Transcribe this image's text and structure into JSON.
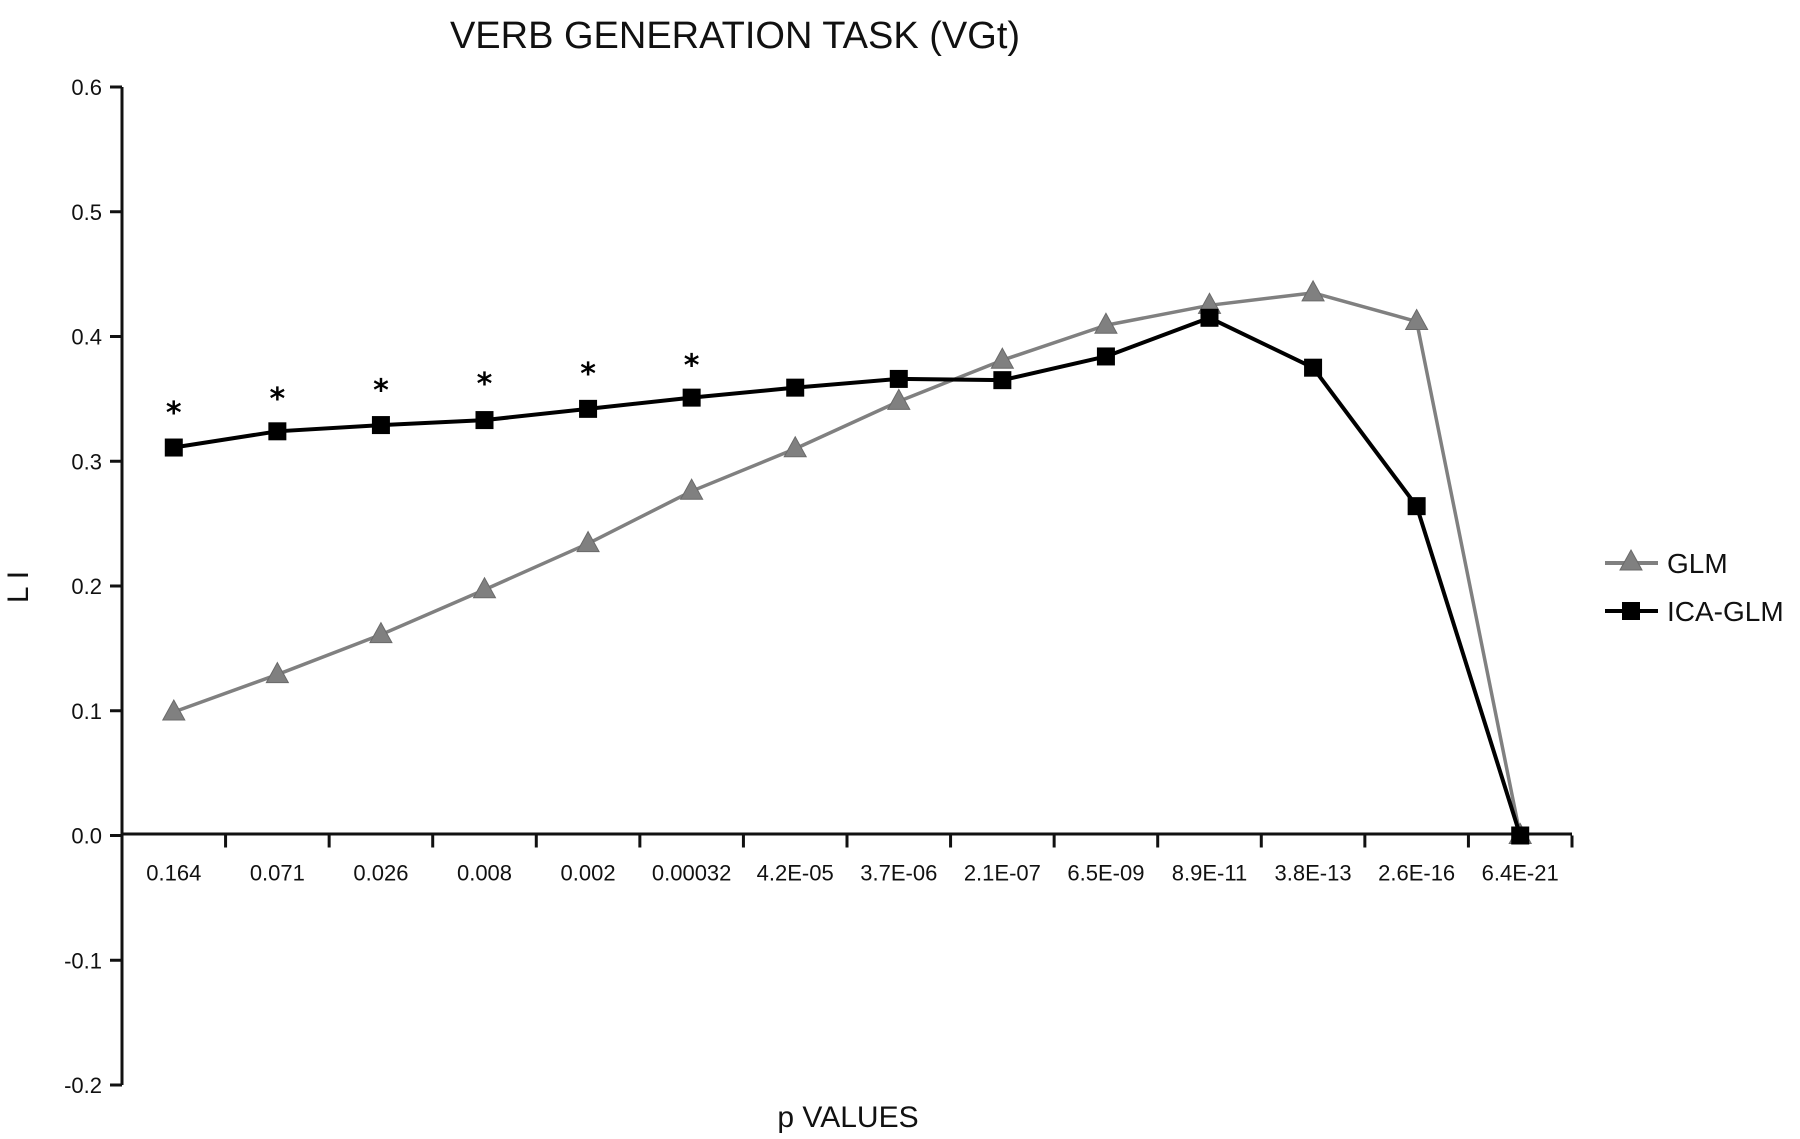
{
  "chart_data": {
    "type": "line",
    "title": "VERB GENERATION TASK (VGt)",
    "xlabel": "p VALUES",
    "ylabel": "L I",
    "categories": [
      "0.164",
      "0.071",
      "0.026",
      "0.008",
      "0.002",
      "0.00032",
      "4.2E-05",
      "3.7E-06",
      "2.1E-07",
      "6.5E-09",
      "8.9E-11",
      "3.8E-13",
      "2.6E-16",
      "6.4E-21"
    ],
    "ylim": [
      -0.2,
      0.6
    ],
    "yticks": [
      "0.6",
      "0.5",
      "0.4",
      "0.3",
      "0.2",
      "0.1",
      "0.0",
      "-0.1",
      "-0.2"
    ],
    "ytick_values": [
      0.6,
      0.5,
      0.4,
      0.3,
      0.2,
      0.1,
      0.0,
      -0.1,
      -0.2
    ],
    "grid": false,
    "legend_position": "right",
    "series": [
      {
        "name": "GLM",
        "marker": "triangle",
        "color": "#808080",
        "values": [
          0.099,
          0.129,
          0.161,
          0.197,
          0.234,
          0.276,
          0.31,
          0.348,
          0.381,
          0.409,
          0.425,
          0.435,
          0.412,
          0.0
        ]
      },
      {
        "name": "ICA-GLM",
        "marker": "square",
        "color": "#000000",
        "values": [
          0.311,
          0.324,
          0.329,
          0.333,
          0.342,
          0.351,
          0.359,
          0.366,
          0.365,
          0.384,
          0.415,
          0.375,
          0.264,
          0.0
        ]
      }
    ],
    "annotations": [
      {
        "text": "*",
        "category_index": 0,
        "y": 0.342
      },
      {
        "text": "*",
        "category_index": 1,
        "y": 0.353
      },
      {
        "text": "*",
        "category_index": 2,
        "y": 0.36
      },
      {
        "text": "*",
        "category_index": 3,
        "y": 0.365
      },
      {
        "text": "*",
        "category_index": 4,
        "y": 0.373
      },
      {
        "text": "*",
        "category_index": 5,
        "y": 0.38
      }
    ]
  }
}
